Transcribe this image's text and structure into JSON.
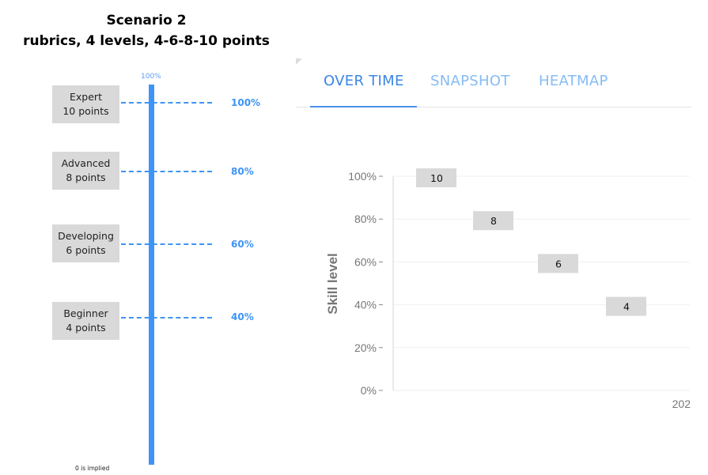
{
  "title": {
    "line1": "Scenario 2",
    "line2": "rubrics, 4 levels, 4-6-8-10 points"
  },
  "scale": {
    "top_label": "100%",
    "footnote": "0 is implied",
    "color": "#3d94f6",
    "levels": [
      {
        "name": "Expert",
        "points": "10 points",
        "percent": "100%"
      },
      {
        "name": "Advanced",
        "points": "8 points",
        "percent": "80%"
      },
      {
        "name": "Developing",
        "points": "6 points",
        "percent": "60%"
      },
      {
        "name": "Beginner",
        "points": "4 points",
        "percent": "40%"
      }
    ]
  },
  "tabs": [
    {
      "label": "OVER TIME",
      "active": true
    },
    {
      "label": "SNAPSHOT",
      "active": false
    },
    {
      "label": "HEATMAP",
      "active": false
    }
  ],
  "chart_data": {
    "type": "scatter",
    "ylabel": "Skill level",
    "ylim": [
      0,
      100
    ],
    "yticks": [
      "0%",
      "20%",
      "40%",
      "60%",
      "80%",
      "100%"
    ],
    "xtick_partial": "202",
    "grid": true,
    "points": [
      {
        "label": "10",
        "y": 100
      },
      {
        "label": "8",
        "y": 80
      },
      {
        "label": "6",
        "y": 60
      },
      {
        "label": "4",
        "y": 40
      }
    ]
  }
}
